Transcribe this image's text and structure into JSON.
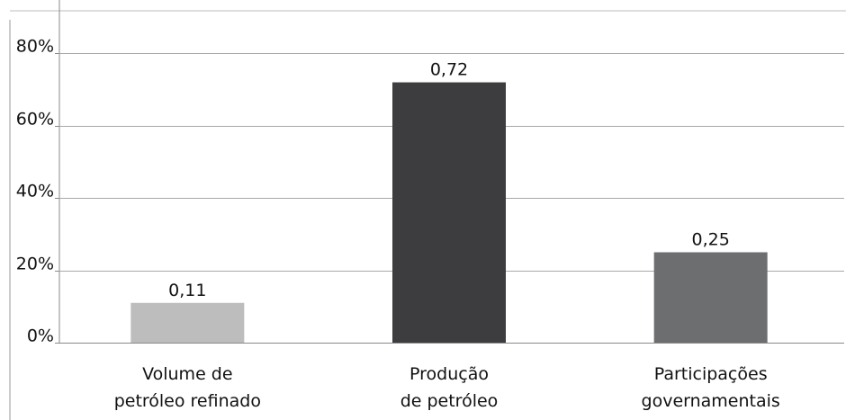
{
  "chart_data": {
    "type": "bar",
    "title": "",
    "xlabel": "",
    "ylabel": "",
    "categories": [
      [
        "Volume de",
        "petróleo refinado"
      ],
      [
        "Produção",
        "de petróleo"
      ],
      [
        "Participações",
        "governamentais"
      ]
    ],
    "values": [
      0.11,
      0.72,
      0.25
    ],
    "data_labels": [
      "0,11",
      "0,72",
      "0,25"
    ],
    "bar_colors": [
      "#bdbdbd",
      "#3d3d3f",
      "#6d6e70"
    ],
    "ylim": [
      0,
      0.9
    ],
    "yticks": [
      0,
      0.2,
      0.4,
      0.6,
      0.8
    ],
    "ytick_labels": [
      "0%",
      "20%",
      "40%",
      "60%",
      "80%"
    ],
    "grid": true,
    "legend": "none"
  }
}
